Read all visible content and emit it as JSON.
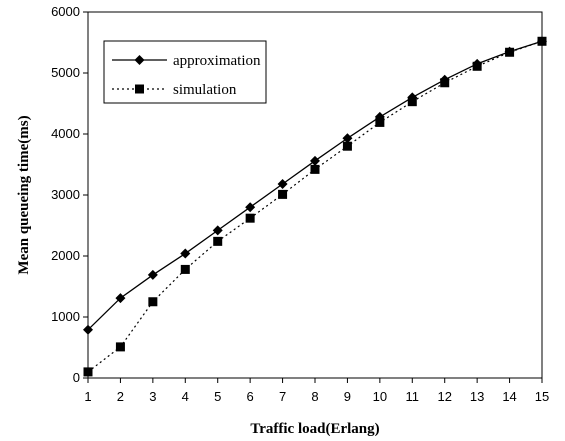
{
  "chart_data": {
    "type": "line",
    "xlabel": "Traffic load(Erlang)",
    "ylabel": "Mean queueing time(ms)",
    "xlim": [
      1,
      15
    ],
    "ylim": [
      0,
      6000
    ],
    "x_ticks": [
      1,
      2,
      3,
      4,
      5,
      6,
      7,
      8,
      9,
      10,
      11,
      12,
      13,
      14,
      15
    ],
    "y_ticks": [
      0,
      1000,
      2000,
      3000,
      4000,
      5000,
      6000
    ],
    "grid": false,
    "legend_position": "top-left",
    "x": [
      1,
      2,
      3,
      4,
      5,
      6,
      7,
      8,
      9,
      10,
      11,
      12,
      13,
      14,
      15
    ],
    "series": [
      {
        "name": "approximation",
        "marker": "diamond",
        "line_style": "solid",
        "color": "#000000",
        "values": [
          790,
          1310,
          1690,
          2040,
          2420,
          2800,
          3180,
          3560,
          3930,
          4280,
          4600,
          4890,
          5150,
          5350,
          5520
        ]
      },
      {
        "name": "simulation",
        "marker": "square",
        "line_style": "dotted",
        "color": "#000000",
        "values": [
          100,
          510,
          1250,
          1780,
          2240,
          2620,
          3010,
          3420,
          3800,
          4190,
          4530,
          4840,
          5110,
          5340,
          5520
        ]
      }
    ]
  }
}
